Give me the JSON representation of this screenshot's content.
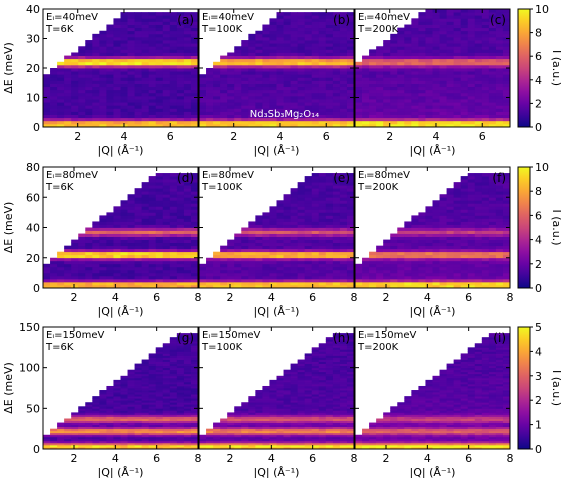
{
  "chart_data": {
    "type": "heatmap",
    "colormap": "plasma",
    "rows": [
      {
        "ylabel": "ΔE (meV)",
        "ylim": [
          0,
          40
        ],
        "yticks": [
          "0",
          "10",
          "20",
          "30",
          "40"
        ],
        "xlim": [
          0.5,
          7.2
        ],
        "xticks": [
          "2",
          "4",
          "6"
        ],
        "colorbar": {
          "label": "I (a.u.)",
          "range": [
            0,
            10
          ],
          "ticks": [
            "0",
            "2",
            "4",
            "6",
            "8",
            "10"
          ]
        },
        "panels": [
          {
            "letter": "(a)",
            "ei": "Eᵢ=40meV",
            "temp": "T=6K",
            "bands": [
              {
                "E": 22,
                "strength": 1.0
              },
              {
                "E": 1,
                "strength": 0.9
              }
            ]
          },
          {
            "letter": "(b)",
            "ei": "Eᵢ=40meV",
            "temp": "T=100K",
            "bands": [
              {
                "E": 22,
                "strength": 0.85
              },
              {
                "E": 1,
                "strength": 0.9
              }
            ]
          },
          {
            "letter": "(c)",
            "ei": "Eᵢ=40meV",
            "temp": "T=200K",
            "bands": [
              {
                "E": 22,
                "strength": 0.55
              },
              {
                "E": 1,
                "strength": 0.9
              }
            ]
          }
        ],
        "compound": "Nd₃Sb₃Mg₂O₁₄"
      },
      {
        "ylabel": "ΔE (meV)",
        "ylim": [
          0,
          80
        ],
        "yticks": [
          "0",
          "20",
          "40",
          "60",
          "80"
        ],
        "xlim": [
          0.5,
          8
        ],
        "xticks": [
          "2",
          "4",
          "6",
          "8"
        ],
        "colorbar": {
          "label": "I (a.u.)",
          "range": [
            0,
            10
          ],
          "ticks": [
            "0",
            "2",
            "4",
            "6",
            "8",
            "10"
          ]
        },
        "panels": [
          {
            "letter": "(d)",
            "ei": "Eᵢ=80meV",
            "temp": "T=6K",
            "bands": [
              {
                "E": 22,
                "strength": 1.0
              },
              {
                "E": 37,
                "strength": 0.55
              },
              {
                "E": 2,
                "strength": 0.9
              }
            ]
          },
          {
            "letter": "(e)",
            "ei": "Eᵢ=80meV",
            "temp": "T=100K",
            "bands": [
              {
                "E": 22,
                "strength": 0.85
              },
              {
                "E": 37,
                "strength": 0.45
              },
              {
                "E": 2,
                "strength": 0.9
              }
            ]
          },
          {
            "letter": "(f)",
            "ei": "Eᵢ=80meV",
            "temp": "T=200K",
            "bands": [
              {
                "E": 22,
                "strength": 0.6
              },
              {
                "E": 37,
                "strength": 0.35
              },
              {
                "E": 2,
                "strength": 0.9
              }
            ]
          }
        ]
      },
      {
        "ylabel": "ΔE (meV)",
        "ylim": [
          0,
          150
        ],
        "yticks": [
          "0",
          "50",
          "100",
          "150"
        ],
        "xlim": [
          0.5,
          8
        ],
        "xticks": [
          "2",
          "4",
          "6",
          "8"
        ],
        "colorbar": {
          "label": "I (a.u.)",
          "range": [
            0,
            5
          ],
          "ticks": [
            "0",
            "1",
            "2",
            "3",
            "4",
            "5"
          ]
        },
        "panels": [
          {
            "letter": "(g)",
            "ei": "Eᵢ=150meV",
            "temp": "T=6K",
            "bands": [
              {
                "E": 22,
                "strength": 0.7
              },
              {
                "E": 37,
                "strength": 0.55
              },
              {
                "E": 3,
                "strength": 0.9
              }
            ]
          },
          {
            "letter": "(h)",
            "ei": "Eᵢ=150meV",
            "temp": "T=100K",
            "bands": [
              {
                "E": 22,
                "strength": 0.6
              },
              {
                "E": 37,
                "strength": 0.45
              },
              {
                "E": 3,
                "strength": 0.9
              }
            ]
          },
          {
            "letter": "(i)",
            "ei": "Eᵢ=150meV",
            "temp": "T=200K",
            "bands": [
              {
                "E": 22,
                "strength": 0.45
              },
              {
                "E": 37,
                "strength": 0.35
              },
              {
                "E": 3,
                "strength": 0.9
              }
            ]
          }
        ]
      }
    ],
    "xlabel": "|Q| (Å⁻¹)"
  }
}
